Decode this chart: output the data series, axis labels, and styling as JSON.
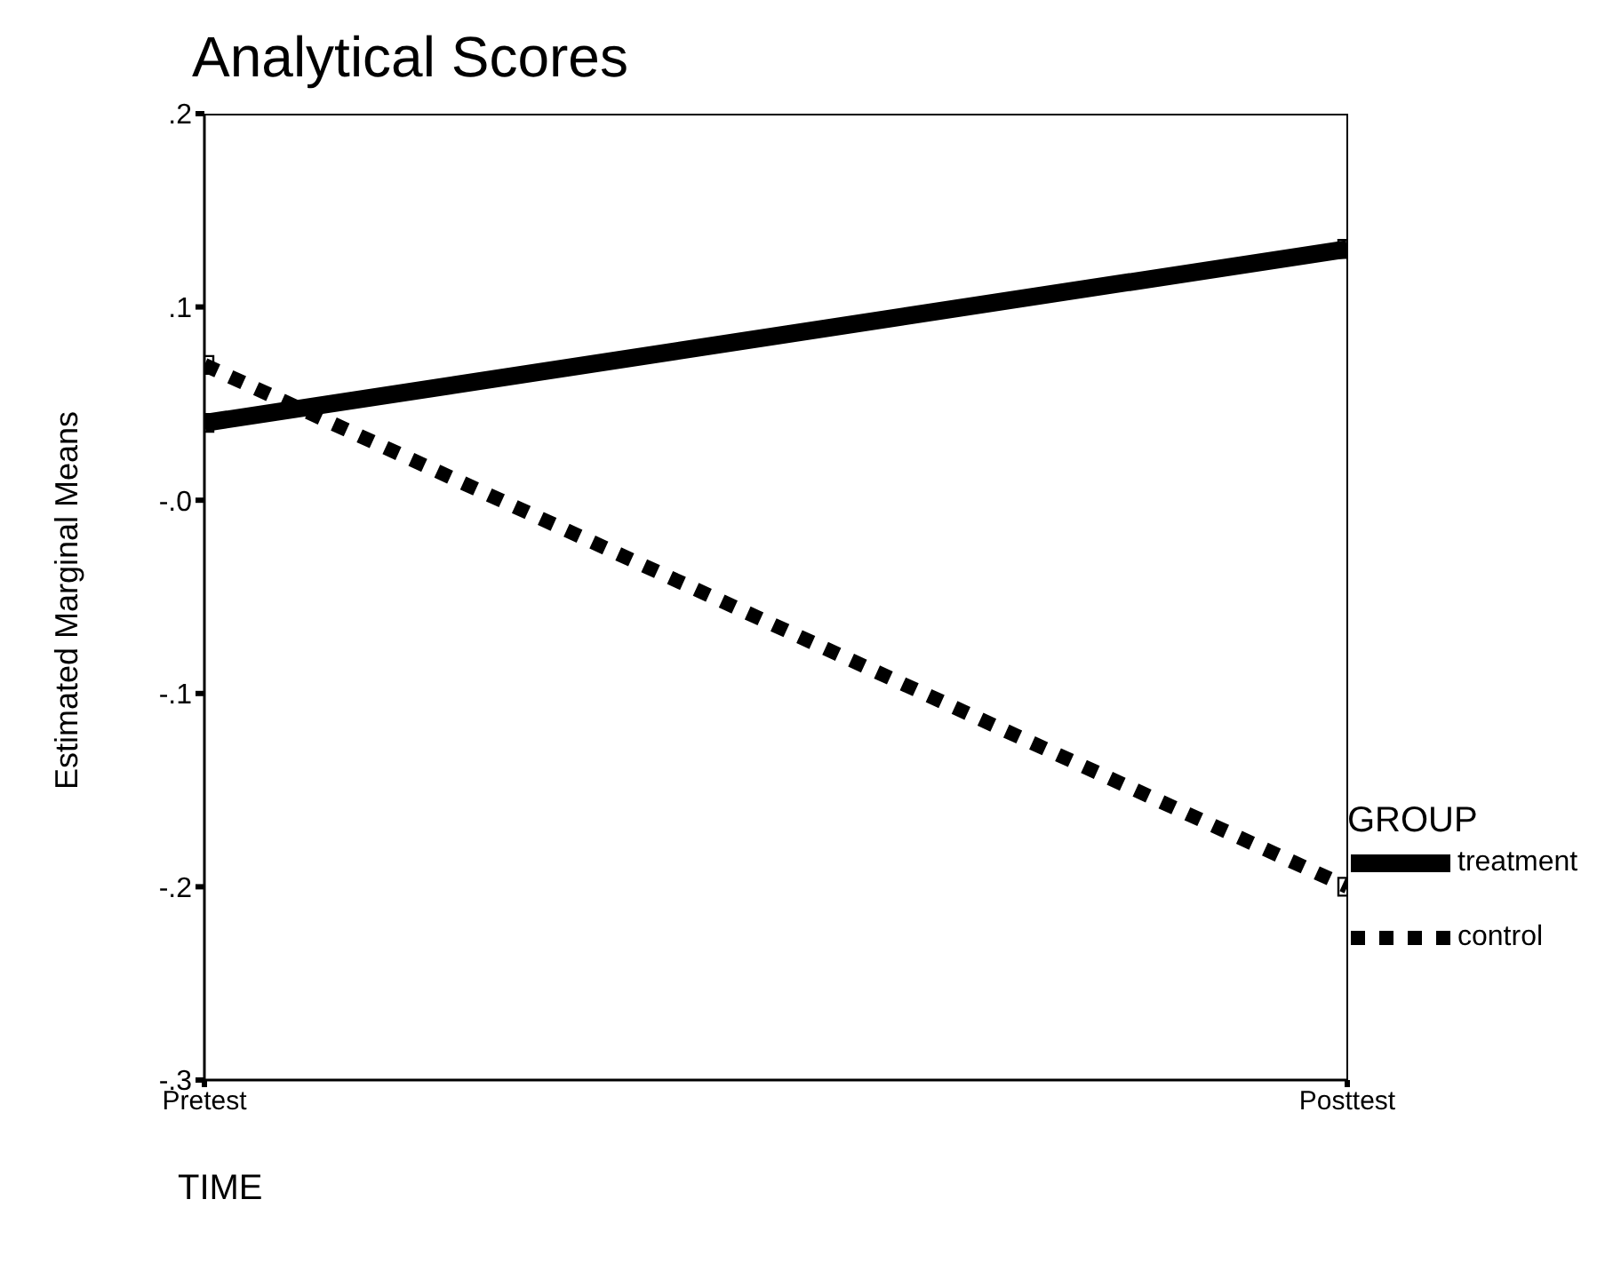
{
  "chart_data": {
    "type": "line",
    "title": "Analytical Scores",
    "xlabel": "TIME",
    "ylabel": "Estimated Marginal Means",
    "legend_title": "GROUP",
    "categories": [
      "Pretest",
      "Posttest"
    ],
    "series": [
      {
        "name": "treatment",
        "color": "#000000",
        "values": [
          0.04,
          0.13
        ],
        "line_style": "solid"
      },
      {
        "name": "control",
        "color": "#000000",
        "values": [
          0.07,
          -0.2
        ],
        "line_style": "dashed"
      }
    ],
    "ylim": [
      -0.3,
      0.2
    ],
    "yticks": [
      {
        "value": 0.2,
        "label": ".2"
      },
      {
        "value": 0.1,
        "label": ".1"
      },
      {
        "value": 0,
        "label": "-.0"
      },
      {
        "value": -0.1,
        "label": "-.1"
      },
      {
        "value": -0.2,
        "label": "-.2"
      },
      {
        "value": -0.3,
        "label": "-.3"
      }
    ],
    "marker": "square",
    "grid": "x",
    "legend": "bottom right"
  }
}
